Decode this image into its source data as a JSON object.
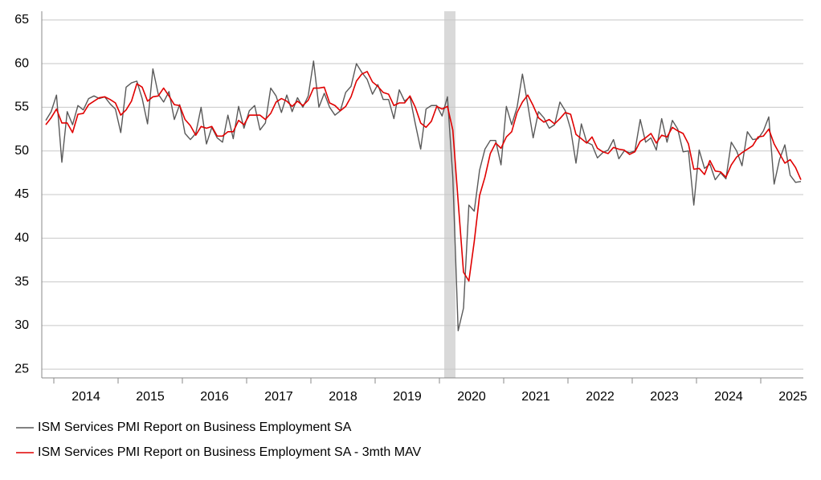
{
  "chart_data": {
    "type": "line",
    "categories": [
      null,
      null,
      null,
      null,
      null,
      null,
      null,
      null,
      "2014",
      null,
      null,
      null,
      null,
      null,
      null,
      null,
      null,
      null,
      null,
      null,
      "2015",
      null,
      null,
      null,
      null,
      null,
      null,
      null,
      null,
      null,
      null,
      null,
      "2016",
      null,
      null,
      null,
      null,
      null,
      null,
      null,
      null,
      null,
      null,
      null,
      "2017",
      null,
      null,
      null,
      null,
      null,
      null,
      null,
      null,
      null,
      null,
      null,
      "2018",
      null,
      null,
      null,
      null,
      null,
      null,
      null,
      null,
      null,
      null,
      null,
      "2019",
      null,
      null,
      null,
      null,
      null,
      null,
      null,
      null,
      null,
      null,
      null,
      "2020",
      null,
      null,
      null,
      null,
      null,
      null,
      null,
      null,
      null,
      null,
      null,
      "2021",
      null,
      null,
      null,
      null,
      null,
      null,
      null,
      null,
      null,
      null,
      null,
      "2022",
      null,
      null,
      null,
      null,
      null,
      null,
      null,
      null,
      null,
      null,
      null,
      "2023",
      null,
      null,
      null,
      null,
      null,
      null,
      null,
      null,
      null,
      null,
      null,
      "2024",
      null,
      null,
      null,
      null,
      null,
      null,
      null,
      null,
      null,
      null,
      null,
      "2025",
      null
    ],
    "series": [
      {
        "name": "ISM Services PMI Report on Business Employment SA",
        "color": "#595959",
        "values": [
          53.5,
          54.5,
          56.4,
          48.7,
          54.5,
          53.0,
          55.2,
          54.7,
          56.0,
          56.3,
          56.0,
          56.2,
          55.4,
          54.8,
          52.1,
          57.3,
          57.8,
          58.0,
          56.0,
          53.1,
          59.4,
          56.5,
          55.6,
          56.8,
          53.6,
          55.3,
          52.0,
          51.3,
          52.0,
          55.0,
          50.8,
          52.7,
          51.5,
          51.0,
          54.1,
          51.4,
          55.1,
          52.6,
          54.6,
          55.2,
          52.4,
          53.2,
          57.2,
          56.3,
          54.4,
          56.4,
          54.5,
          56.1,
          55.0,
          56.3,
          60.3,
          55.0,
          56.6,
          55.0,
          54.1,
          54.6,
          56.7,
          57.4,
          60.0,
          59.0,
          58.2,
          56.5,
          57.6,
          55.9,
          55.9,
          53.7,
          57.0,
          55.7,
          56.2,
          53.1,
          50.2,
          54.8,
          55.2,
          55.2,
          54.0,
          56.2,
          47.0,
          29.4,
          32.0,
          43.8,
          43.1,
          47.8,
          50.2,
          51.2,
          51.2,
          48.4,
          55.1,
          53.0,
          55.0,
          58.8,
          55.3,
          51.5,
          54.5,
          53.8,
          52.6,
          53.0,
          55.6,
          54.6,
          52.5,
          48.6,
          53.1,
          51.0,
          50.7,
          49.2,
          49.8,
          50.1,
          51.3,
          49.1,
          50.0,
          49.8,
          50.0,
          53.6,
          51.0,
          51.5,
          50.1,
          53.7,
          51.0,
          53.5,
          52.5,
          49.9,
          50.0,
          43.8,
          50.1,
          48.0,
          48.5,
          46.7,
          47.5,
          46.8,
          51.0,
          50.0,
          48.3,
          52.2,
          51.3,
          51.4,
          52.3,
          53.9,
          46.2,
          49.0,
          50.7,
          47.2,
          46.4,
          46.5
        ]
      },
      {
        "name": "ISM Services PMI Report on Business Employment SA - 3mth MAV",
        "color": "#e00000",
        "values": [
          53.0,
          53.8,
          54.8,
          53.2,
          53.2,
          52.1,
          54.2,
          54.3,
          55.3,
          55.7,
          56.1,
          56.2,
          55.9,
          55.5,
          54.1,
          54.7,
          55.7,
          57.7,
          57.3,
          55.7,
          56.2,
          56.3,
          57.2,
          56.3,
          55.3,
          55.2,
          53.6,
          52.9,
          51.8,
          52.8,
          52.6,
          52.8,
          51.7,
          51.7,
          52.2,
          52.2,
          53.5,
          53.0,
          54.1,
          54.1,
          54.1,
          53.6,
          54.3,
          55.6,
          56.0,
          55.7,
          55.1,
          55.7,
          55.2,
          55.8,
          57.2,
          57.2,
          57.3,
          55.5,
          55.2,
          54.6,
          55.1,
          56.2,
          58.0,
          58.8,
          59.1,
          57.9,
          57.4,
          56.7,
          56.5,
          55.2,
          55.5,
          55.5,
          56.3,
          55.0,
          53.2,
          52.7,
          53.4,
          55.1,
          54.8,
          55.1,
          52.4,
          44.2,
          36.1,
          35.1,
          39.6,
          44.9,
          47.0,
          49.7,
          50.9,
          50.3,
          51.6,
          52.2,
          54.4,
          55.6,
          56.4,
          55.2,
          53.8,
          53.3,
          53.6,
          53.1,
          53.7,
          54.4,
          54.2,
          51.9,
          51.4,
          50.9,
          51.6,
          50.3,
          49.9,
          49.7,
          50.4,
          50.2,
          50.1,
          49.6,
          49.9,
          51.1,
          51.5,
          52.0,
          50.9,
          51.8,
          51.6,
          52.7,
          52.3,
          52.0,
          50.8,
          47.9,
          48.0,
          47.3,
          48.9,
          47.7,
          47.6,
          47.0,
          48.4,
          49.3,
          49.8,
          50.2,
          50.6,
          51.6,
          51.7,
          52.5,
          50.8,
          49.7,
          48.6,
          49.0,
          48.1,
          46.7
        ]
      }
    ],
    "ylim": [
      24,
      66
    ],
    "yticks": [
      25,
      30,
      35,
      40,
      45,
      50,
      55,
      60,
      65
    ],
    "grid": true,
    "legend": "bottom"
  }
}
